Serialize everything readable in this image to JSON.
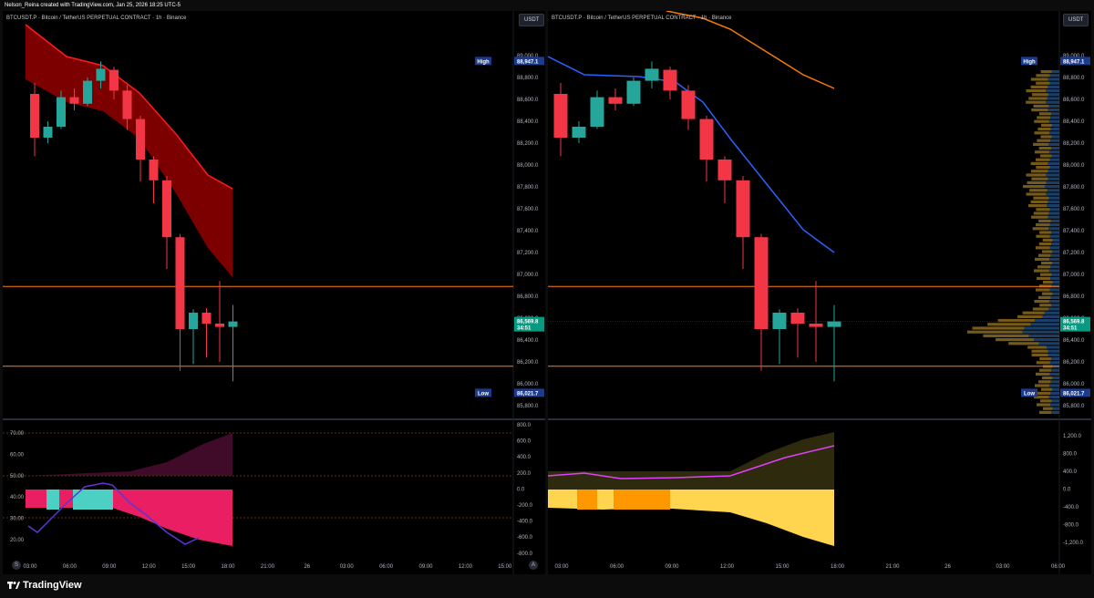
{
  "header": {
    "credit": "Nelson_Reina created with TradingView.com, Jan 25, 2026 18:25 UTC-5"
  },
  "branding": {
    "logo_text": "TradingView"
  },
  "left_panel": {
    "title": "BTCUSDT.P · Bitcoin / TetherUS PERPETUAL CONTRACT · 1h · Binance",
    "currency": "USDT",
    "badge_a": "A",
    "badge_s": "S",
    "price_ticks": [
      "89,000.0",
      "88,800.0",
      "88,600.0",
      "88,400.0",
      "88,200.0",
      "88,000.0",
      "87,800.0",
      "87,600.0",
      "87,400.0",
      "87,200.0",
      "87,000.0",
      "86,800.0",
      "86,600.0",
      "86,400.0",
      "86,200.0",
      "86,000.0",
      "85,800.0"
    ],
    "high_label": "High",
    "high_value": "88,947.1",
    "low_label": "Low",
    "low_value": "86,021.7",
    "last_value": "86,569.8",
    "countdown": "34:51",
    "osc_left_ticks": [
      "70.00",
      "60.00",
      "50.00",
      "40.00",
      "30.00",
      "20.00"
    ],
    "osc_right_ticks": [
      "800.0",
      "600.0",
      "400.0",
      "200.0",
      "0.0",
      "-200.0",
      "-400.0",
      "-600.0",
      "-800.0"
    ],
    "time_ticks": [
      "03:00",
      "06:00",
      "09:00",
      "12:00",
      "15:00",
      "18:00",
      "21:00",
      "26",
      "03:00",
      "06:00",
      "09:00",
      "12:00",
      "15:00"
    ]
  },
  "right_panel": {
    "title": "BTCUSDT.P · Bitcoin / TetherUS PERPETUAL CONTRACT · 1h · Binance",
    "currency": "USDT",
    "price_ticks": [
      "89,000.0",
      "88,800.0",
      "88,600.0",
      "88,400.0",
      "88,200.0",
      "88,000.0",
      "87,800.0",
      "87,600.0",
      "87,400.0",
      "87,200.0",
      "87,000.0",
      "86,800.0",
      "86,600.0",
      "86,400.0",
      "86,200.0",
      "86,000.0",
      "85,800.0"
    ],
    "high_label": "High",
    "high_value": "88,947.1",
    "low_label": "Low",
    "low_value": "86,021.7",
    "last_value": "86,569.8",
    "countdown": "34:51",
    "osc_ticks": [
      "1,200.0",
      "800.0",
      "400.0",
      "0.0",
      "-400.0",
      "-800.0",
      "-1,200.0"
    ],
    "time_ticks": [
      "03:00",
      "06:00",
      "09:00",
      "12:00",
      "15:00",
      "18:00",
      "21:00",
      "26",
      "03:00",
      "06:00"
    ]
  },
  "chart_data": [
    {
      "type": "candlestick",
      "title": "BTCUSDT.P · Bitcoin / TetherUS PERPETUAL CONTRACT · 1h · Binance",
      "ylim": [
        85700,
        89200
      ],
      "candles": [
        {
          "o": 88650,
          "h": 88750,
          "l": 88080,
          "c": 88250
        },
        {
          "o": 88250,
          "h": 88400,
          "l": 88200,
          "c": 88350
        },
        {
          "o": 88350,
          "h": 88680,
          "l": 88330,
          "c": 88620
        },
        {
          "o": 88620,
          "h": 88700,
          "l": 88500,
          "c": 88560
        },
        {
          "o": 88560,
          "h": 88800,
          "l": 88540,
          "c": 88770
        },
        {
          "o": 88770,
          "h": 88947,
          "l": 88700,
          "c": 88880
        },
        {
          "o": 88870,
          "h": 88900,
          "l": 88600,
          "c": 88680
        },
        {
          "o": 88680,
          "h": 88730,
          "l": 88320,
          "c": 88420
        },
        {
          "o": 88420,
          "h": 88450,
          "l": 87850,
          "c": 88050
        },
        {
          "o": 88050,
          "h": 88080,
          "l": 87650,
          "c": 87860
        },
        {
          "o": 87860,
          "h": 87900,
          "l": 87050,
          "c": 87340
        },
        {
          "o": 87340,
          "h": 87370,
          "l": 86120,
          "c": 86500
        },
        {
          "o": 86500,
          "h": 86680,
          "l": 86180,
          "c": 86650
        },
        {
          "o": 86650,
          "h": 86690,
          "l": 86240,
          "c": 86550
        },
        {
          "o": 86550,
          "h": 86940,
          "l": 86200,
          "c": 86520
        },
        {
          "o": 86520,
          "h": 86720,
          "l": 86021.7,
          "c": 86569.8
        }
      ],
      "horizontal_levels": [
        86890,
        86160
      ],
      "last_price": 86569.8
    }
  ],
  "colors": {
    "up": "#26a69a",
    "down": "#f23645",
    "level_line": "#ff7a1a",
    "ribbon": "#8b0000",
    "ribbon_edge": "#ff1a1a",
    "ema_blue": "#2962ff",
    "ema_orange": "#f57c00",
    "osc_pink": "#e91e63",
    "osc_teal": "#4dd0c4",
    "osc_purple": "#5e35d6",
    "osc_yellow": "#ffd54f",
    "osc_orange": "#ff9800",
    "osc_magenta": "#e040fb",
    "high_badge": "#1e3a8a",
    "last_badge": "#089981"
  }
}
